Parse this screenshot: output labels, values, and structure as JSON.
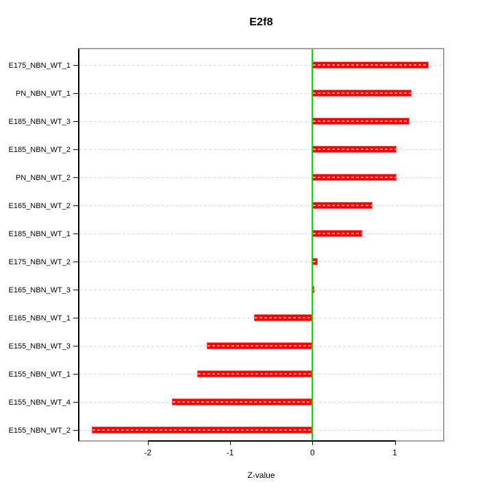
{
  "title": "E2f8",
  "xlabel": "Z-value",
  "chart_data": {
    "type": "bar",
    "orientation": "horizontal",
    "title": "E2f8",
    "xlabel": "Z-value",
    "categories": [
      "E175_NBN_WT_1",
      "PN_NBN_WT_1",
      "E185_NBN_WT_3",
      "E185_NBN_WT_2",
      "PN_NBN_WT_2",
      "E165_NBN_WT_2",
      "E185_NBN_WT_1",
      "E175_NBN_WT_2",
      "E165_NBN_WT_3",
      "E165_NBN_WT_1",
      "E155_NBN_WT_3",
      "E155_NBN_WT_1",
      "E155_NBN_WT_4",
      "E155_NBN_WT_2"
    ],
    "values": [
      1.41,
      1.2,
      1.18,
      1.02,
      1.02,
      0.73,
      0.6,
      0.06,
      0.02,
      -0.71,
      -1.28,
      -1.4,
      -1.71,
      -2.68
    ],
    "x_ticks": [
      -2,
      -1,
      0,
      1
    ],
    "x_tick_labels": [
      "-2",
      "-1",
      "0",
      "1"
    ],
    "xlim": [
      -2.83,
      1.585
    ],
    "grid": true,
    "legend": "none",
    "zero_line": 0
  },
  "colors": {
    "bar_fill": "#ff0000",
    "bar_border": "#ff5050",
    "bar_stripe": "#ff9e9e",
    "zero_line": "#00e400",
    "grid": "#d8d8d8",
    "box": "#a3a3a3",
    "axis": "#000000",
    "background": "#ffffff"
  }
}
